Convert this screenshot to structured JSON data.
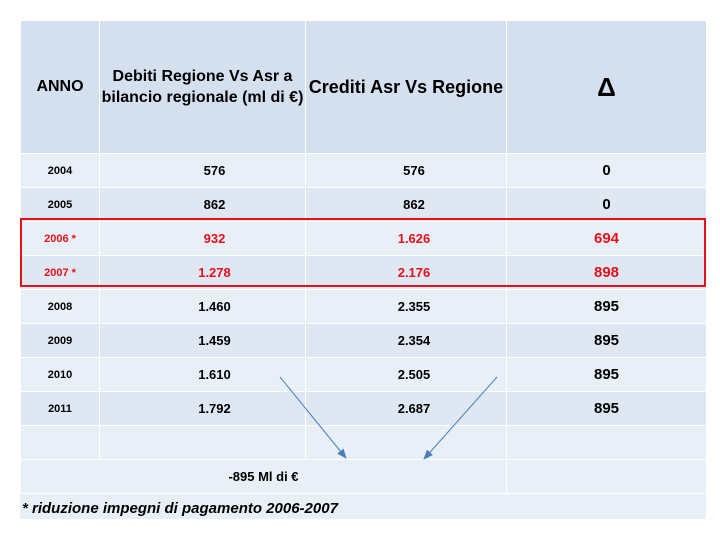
{
  "table": {
    "headers": {
      "anno": "ANNO",
      "debiti": "Debiti Regione Vs Asr a bilancio regionale (ml di €)",
      "crediti": "Crediti Asr Vs Regione",
      "delta": "Δ"
    },
    "rows": [
      {
        "year": "2004",
        "debiti": "576",
        "crediti": "576",
        "delta": "0",
        "highlight": false
      },
      {
        "year": "2005",
        "debiti": "862",
        "crediti": "862",
        "delta": "0",
        "highlight": false
      },
      {
        "year": "2006 *",
        "debiti": "932",
        "crediti": "1.626",
        "delta": "694",
        "highlight": true
      },
      {
        "year": "2007 *",
        "debiti": "1.278",
        "crediti": "2.176",
        "delta": "898",
        "highlight": true
      },
      {
        "year": "2008",
        "debiti": "1.460",
        "crediti": "2.355",
        "delta": "895",
        "highlight": false
      },
      {
        "year": "2009",
        "debiti": "1.459",
        "crediti": "2.354",
        "delta": "895",
        "highlight": false
      },
      {
        "year": "2010",
        "debiti": "1.610",
        "crediti": "2.505",
        "delta": "895",
        "highlight": false
      },
      {
        "year": "2011",
        "debiti": "1.792",
        "crediti": "2.687",
        "delta": "895",
        "highlight": false
      }
    ],
    "total_label": "-895 Ml di €"
  },
  "footnote": "* riduzione impegni di pagamento 2006-2007",
  "colors": {
    "highlight": "#e3111a",
    "arrow": "#4a7ebb",
    "header_bg": "#d5e0ef",
    "row_bg": "#e9eff7"
  }
}
